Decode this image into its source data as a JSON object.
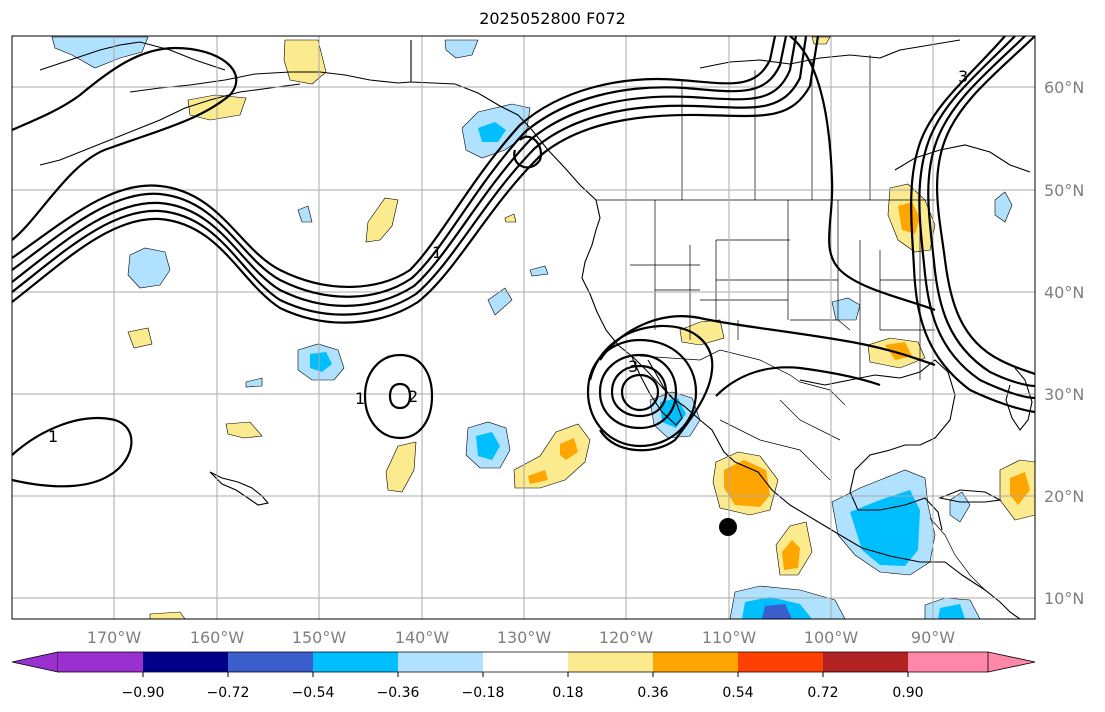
{
  "title": "2025052800 F072",
  "colors": {
    "purple": "#9b30d0",
    "navy": "#00008b",
    "royal_blue": "#3a5fcd",
    "deep_sky_blue": "#00bfff",
    "light_blue": "#b0e2ff",
    "white": "#ffffff",
    "khaki": "#fceb8e",
    "orange": "#ffa500",
    "orange_red": "#ff4000",
    "firebrick": "#b22222",
    "pink": "#ff88a8",
    "grid": "#a9a9a9",
    "label": "#7f7f7f"
  },
  "map": {
    "lon_labels": [
      "170°W",
      "160°W",
      "150°W",
      "140°W",
      "130°W",
      "120°W",
      "110°W",
      "100°W",
      "90°W"
    ],
    "lat_labels": [
      "60°N",
      "50°N",
      "40°N",
      "30°N",
      "20°N",
      "10°N"
    ],
    "contour_labels": [
      "1",
      "1",
      "2",
      "3",
      "3",
      "1"
    ],
    "marker": "black-dot"
  },
  "colorbar": {
    "tick_labels": [
      "−0.90",
      "−0.72",
      "−0.54",
      "−0.36",
      "−0.18",
      "0.18",
      "0.36",
      "0.54",
      "0.72",
      "0.90"
    ],
    "bins": [
      "purple",
      "navy",
      "royal_blue",
      "deep_sky_blue",
      "light_blue",
      "white",
      "khaki",
      "orange",
      "orange_red",
      "firebrick",
      "pink"
    ],
    "extend": "both"
  }
}
